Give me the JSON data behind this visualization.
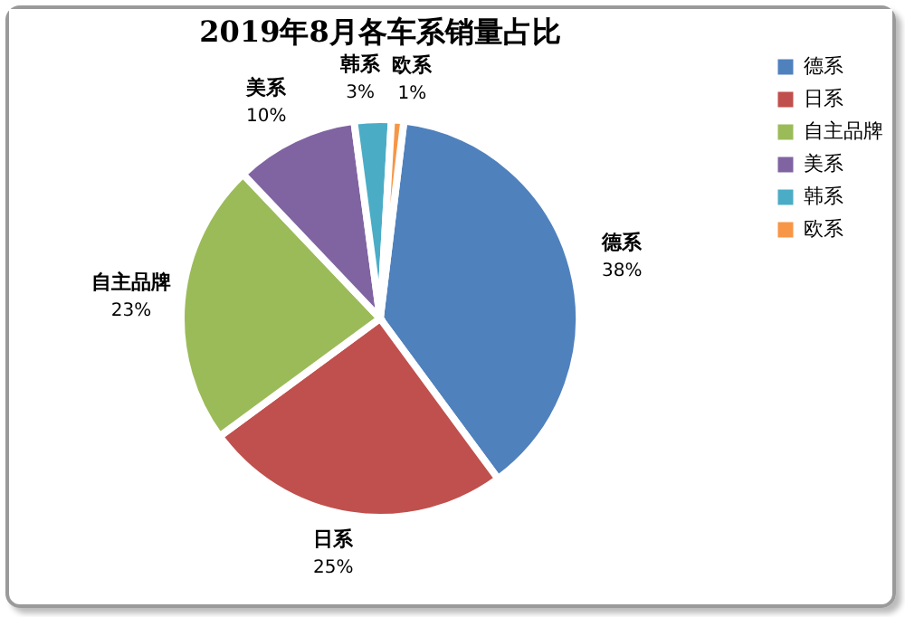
{
  "chart_data": {
    "type": "pie",
    "title": "2019年8月各车系销量占比",
    "categories": [
      "德系",
      "日系",
      "自主品牌",
      "美系",
      "韩系",
      "欧系"
    ],
    "values": [
      38,
      25,
      23,
      10,
      3,
      1
    ],
    "colors": [
      "#4f81bd",
      "#c0504d",
      "#9bbb59",
      "#8064a2",
      "#4bacc6",
      "#f79646"
    ],
    "value_labels": [
      "38%",
      "25%",
      "23%",
      "10%",
      "3%",
      "1%"
    ],
    "legend": "right"
  }
}
